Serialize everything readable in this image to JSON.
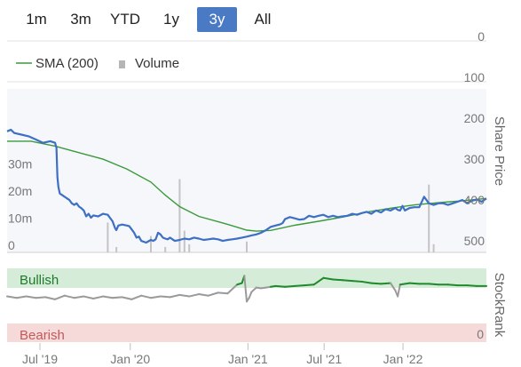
{
  "range_buttons": [
    {
      "label": "1m",
      "active": false
    },
    {
      "label": "3m",
      "active": false
    },
    {
      "label": "YTD",
      "active": false
    },
    {
      "label": "1y",
      "active": false
    },
    {
      "label": "3y",
      "active": true
    },
    {
      "label": "All",
      "active": false
    }
  ],
  "legend": {
    "sma_label": "SMA (200)",
    "volume_label": "Volume"
  },
  "axes": {
    "right_title": "Share Price",
    "stockrank_title": "StockRank",
    "bullish_label": "Bullish",
    "bearish_label": "Bearish",
    "stockrank_zero": "0"
  },
  "colors": {
    "price": "#3d6fc4",
    "sma": "#3a9a3a",
    "volume": "#c4c4c4",
    "bullish_band": "#d5ecd8",
    "bearish_band": "#f6dada",
    "rank_bullish": "#1f8a2c",
    "rank_neutral": "#9a9a9a"
  },
  "chart_data": [
    {
      "type": "line",
      "y_ticks": [
        0,
        100,
        200,
        300,
        400,
        500
      ],
      "y_tick_labels": [
        "0",
        "100",
        "200",
        "300",
        "400",
        "500"
      ],
      "ylim": [
        0,
        500
      ],
      "volume_ticks": [
        0,
        10,
        20,
        30
      ],
      "volume_tick_labels": [
        "0",
        "10m",
        "20m",
        "30m"
      ],
      "volume_lim": [
        0,
        38
      ],
      "x_ticks": [
        "Jul '19",
        "Jan '20",
        "Jan '21",
        "Jul '21",
        "Jan '22"
      ],
      "x_tick_pos": [
        0.0685,
        0.257,
        0.5025,
        0.6615,
        0.826
      ],
      "series": [
        {
          "name": "Price",
          "x": [
            0.0,
            0.008,
            0.015,
            0.03,
            0.045,
            0.06,
            0.075,
            0.09,
            0.1,
            0.103,
            0.105,
            0.107,
            0.11,
            0.115,
            0.12,
            0.125,
            0.13,
            0.135,
            0.14,
            0.145,
            0.15,
            0.155,
            0.16,
            0.165,
            0.17,
            0.175,
            0.18,
            0.19,
            0.2,
            0.21,
            0.215,
            0.22,
            0.225,
            0.228,
            0.232,
            0.24,
            0.25,
            0.255,
            0.26,
            0.265,
            0.27,
            0.275,
            0.28,
            0.29,
            0.3,
            0.305,
            0.31,
            0.315,
            0.32,
            0.325,
            0.33,
            0.335,
            0.34,
            0.345,
            0.35,
            0.36,
            0.37,
            0.38,
            0.39,
            0.4,
            0.41,
            0.42,
            0.43,
            0.44,
            0.45,
            0.46,
            0.47,
            0.48,
            0.49,
            0.5,
            0.51,
            0.52,
            0.53,
            0.54,
            0.55,
            0.56,
            0.57,
            0.575,
            0.58,
            0.59,
            0.6,
            0.61,
            0.62,
            0.63,
            0.64,
            0.65,
            0.66,
            0.67,
            0.68,
            0.69,
            0.7,
            0.71,
            0.72,
            0.73,
            0.74,
            0.75,
            0.76,
            0.77,
            0.78,
            0.79,
            0.8,
            0.81,
            0.815,
            0.82,
            0.825,
            0.83,
            0.84,
            0.85,
            0.86,
            0.87,
            0.88,
            0.89,
            0.9,
            0.91,
            0.92,
            0.93,
            0.94,
            0.95,
            0.96,
            0.97,
            0.98,
            0.99,
            1.0
          ],
          "y": [
            370,
            375,
            365,
            360,
            355,
            345,
            335,
            340,
            335,
            320,
            230,
            200,
            180,
            175,
            170,
            165,
            160,
            150,
            145,
            150,
            140,
            135,
            128,
            110,
            118,
            106,
            113,
            110,
            118,
            115,
            105,
            95,
            75,
            68,
            82,
            85,
            82,
            80,
            70,
            60,
            45,
            48,
            35,
            30,
            38,
            35,
            40,
            60,
            55,
            45,
            42,
            40,
            45,
            40,
            35,
            38,
            42,
            40,
            45,
            42,
            38,
            40,
            42,
            40,
            35,
            38,
            40,
            42,
            45,
            48,
            52,
            55,
            60,
            68,
            78,
            82,
            86,
            90,
            102,
            108,
            104,
            100,
            102,
            112,
            108,
            112,
            115,
            108,
            112,
            108,
            110,
            112,
            118,
            115,
            120,
            124,
            118,
            128,
            122,
            132,
            128,
            136,
            130,
            128,
            142,
            128,
            136,
            138,
            138,
            170,
            150,
            145,
            150,
            150,
            145,
            150,
            155,
            160,
            150,
            158,
            162,
            155,
            165
          ]
        },
        {
          "name": "SMA (200)",
          "x": [
            0.0,
            0.05,
            0.1,
            0.15,
            0.2,
            0.25,
            0.3,
            0.33,
            0.36,
            0.4,
            0.45,
            0.48,
            0.5,
            0.52,
            0.55,
            0.6,
            0.65,
            0.7,
            0.75,
            0.8,
            0.85,
            0.9,
            0.95,
            1.0
          ],
          "y": [
            340,
            340,
            325,
            305,
            285,
            255,
            215,
            175,
            140,
            110,
            90,
            77,
            68,
            65,
            67,
            83,
            95,
            108,
            123,
            135,
            145,
            152,
            158,
            165
          ]
        },
        {
          "name": "Volume",
          "x": [
            0.21,
            0.228,
            0.3,
            0.33,
            0.36,
            0.37,
            0.38,
            0.5,
            0.88,
            0.89
          ],
          "y": [
            11,
            2,
            6,
            2,
            27,
            8,
            3,
            4,
            25,
            3
          ]
        }
      ]
    },
    {
      "type": "line",
      "title": "StockRank",
      "ylim": [
        0,
        100
      ],
      "y_tick_labels": [
        "0"
      ],
      "bands": [
        {
          "label": "Bullish",
          "from": 80,
          "to": 100
        },
        {
          "label": "Bearish",
          "from": 0,
          "to": 20
        }
      ],
      "series": [
        {
          "name": "StockRank",
          "x": [
            0.0,
            0.02,
            0.04,
            0.06,
            0.08,
            0.1,
            0.12,
            0.14,
            0.16,
            0.18,
            0.2,
            0.22,
            0.24,
            0.26,
            0.28,
            0.3,
            0.32,
            0.34,
            0.36,
            0.38,
            0.4,
            0.42,
            0.44,
            0.46,
            0.48,
            0.49,
            0.495,
            0.5,
            0.505,
            0.51,
            0.52,
            0.53,
            0.54,
            0.55,
            0.56,
            0.58,
            0.6,
            0.62,
            0.64,
            0.66,
            0.68,
            0.7,
            0.72,
            0.74,
            0.76,
            0.78,
            0.8,
            0.81,
            0.815,
            0.82,
            0.84,
            0.86,
            0.88,
            0.9,
            0.92,
            0.94,
            0.96,
            0.98,
            1.0
          ],
          "y": [
            62,
            60,
            62,
            60,
            61,
            58,
            63,
            60,
            62,
            59,
            62,
            60,
            61,
            58,
            63,
            60,
            62,
            61,
            64,
            62,
            65,
            63,
            67,
            66,
            78,
            80,
            90,
            55,
            60,
            68,
            74,
            73,
            74,
            75,
            76,
            75,
            76,
            77,
            78,
            87,
            85,
            84,
            83,
            82,
            80,
            79,
            80,
            70,
            62,
            78,
            80,
            79,
            79,
            78,
            78,
            77,
            77,
            76,
            76
          ]
        }
      ]
    }
  ]
}
